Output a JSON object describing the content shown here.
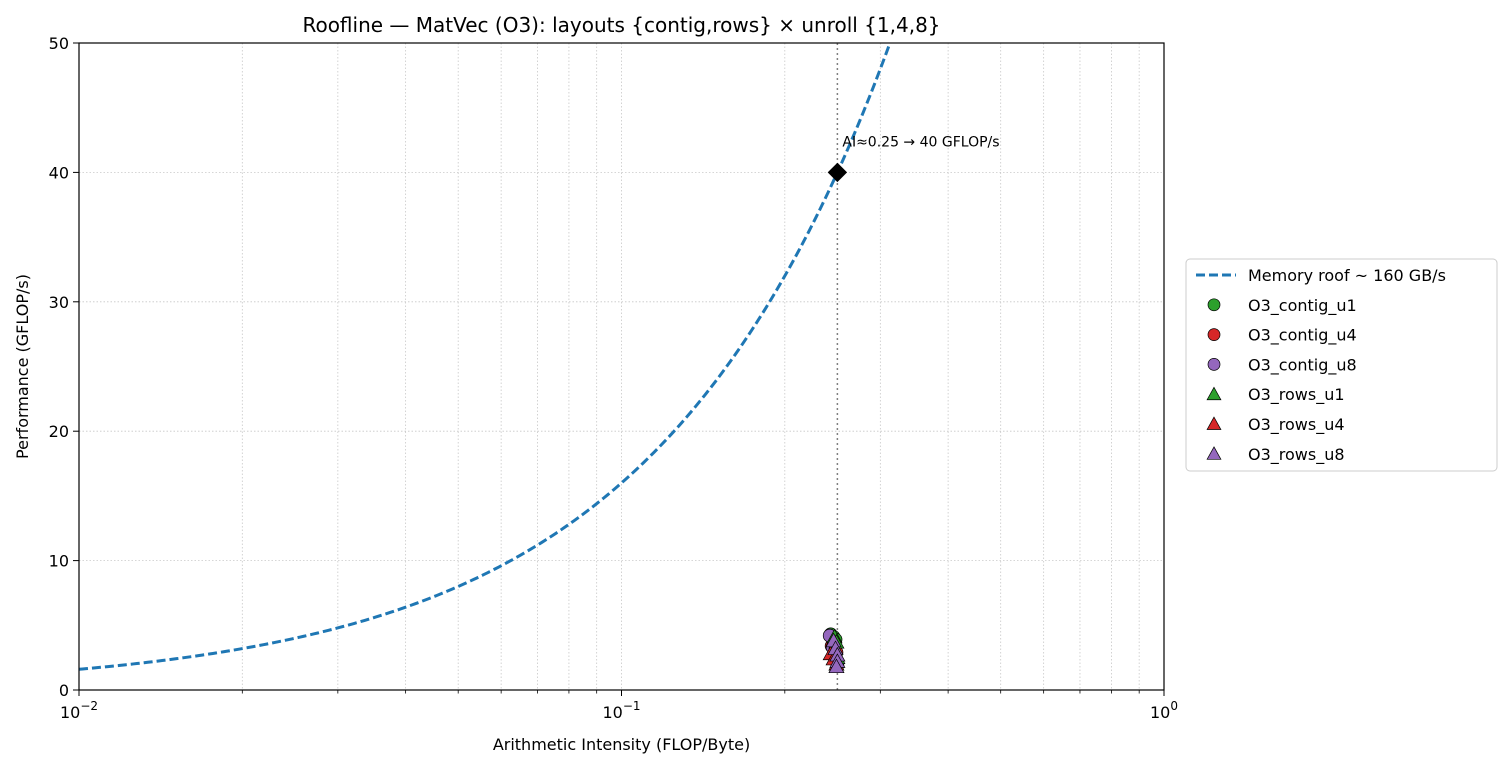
{
  "chart_data": {
    "type": "scatter",
    "title": "Roofline — MatVec (O3): layouts {contig,rows} × unroll {1,4,8}",
    "xlabel": "Arithmetic Intensity (FLOP/Byte)",
    "ylabel": "Performance (GFLOP/s)",
    "xscale": "log",
    "xlim": [
      0.01,
      1
    ],
    "ylim": [
      0,
      50
    ],
    "x_ticks": [
      {
        "value": 0.01,
        "base": "10",
        "exp": "−2"
      },
      {
        "value": 0.1,
        "base": "10",
        "exp": "−1"
      },
      {
        "value": 1,
        "base": "10",
        "exp": "0"
      }
    ],
    "y_ticks": [
      {
        "value": 0,
        "label": "0"
      },
      {
        "value": 10,
        "label": "10"
      },
      {
        "value": 20,
        "label": "20"
      },
      {
        "value": 30,
        "label": "30"
      },
      {
        "value": 40,
        "label": "40"
      },
      {
        "value": 50,
        "label": "50"
      }
    ],
    "grid": true,
    "legend_position": "outside-right",
    "roof": {
      "name": "Memory roof ~ 160 GB/s",
      "bandwidth_gbs": 160,
      "color": "#1f77b4",
      "style": "dashed"
    },
    "reference_line": {
      "x": 0.25,
      "color": "#808080",
      "style": "dotted"
    },
    "annotation": {
      "x": 0.25,
      "y": 40,
      "text": "AI≈0.25 → 40 GFLOP/s",
      "marker": "diamond",
      "color": "#000000"
    },
    "series": [
      {
        "name": "O3_contig_u1",
        "marker": "circle",
        "color": "#2ca02c",
        "points": [
          [
            0.243,
            4.3
          ],
          [
            0.246,
            4.1
          ],
          [
            0.248,
            3.9
          ]
        ]
      },
      {
        "name": "O3_contig_u4",
        "marker": "circle",
        "color": "#d62728",
        "points": [
          [
            0.244,
            3.4
          ],
          [
            0.247,
            3.1
          ],
          [
            0.249,
            2.9
          ]
        ]
      },
      {
        "name": "O3_contig_u8",
        "marker": "circle",
        "color": "#9467bd",
        "points": [
          [
            0.242,
            4.2
          ],
          [
            0.245,
            3.3
          ],
          [
            0.248,
            2.6
          ],
          [
            0.25,
            2.2
          ],
          [
            0.25,
            1.9
          ]
        ]
      },
      {
        "name": "O3_rows_u1",
        "marker": "triangle",
        "color": "#2ca02c",
        "points": [
          [
            0.247,
            4.1
          ],
          [
            0.249,
            3.7
          ],
          [
            0.25,
            2.5
          ]
        ]
      },
      {
        "name": "O3_rows_u4",
        "marker": "triangle",
        "color": "#d62728",
        "points": [
          [
            0.243,
            2.8
          ],
          [
            0.246,
            2.4
          ],
          [
            0.249,
            2.0
          ]
        ]
      },
      {
        "name": "O3_rows_u8",
        "marker": "triangle",
        "color": "#9467bd",
        "points": [
          [
            0.246,
            3.8
          ],
          [
            0.248,
            3.2
          ],
          [
            0.25,
            2.7
          ],
          [
            0.25,
            2.2
          ],
          [
            0.249,
            1.8
          ]
        ]
      }
    ]
  }
}
